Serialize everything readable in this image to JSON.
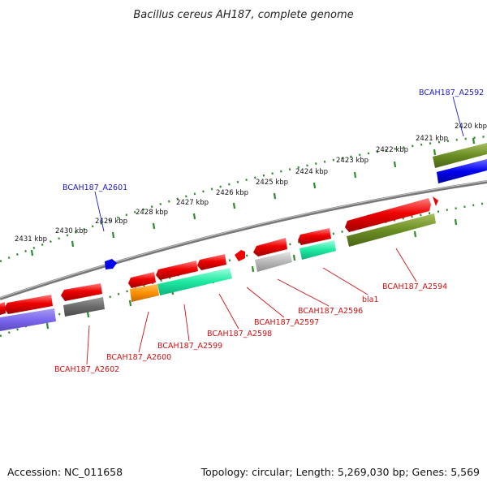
{
  "title": "Bacillus cereus AH187, complete genome",
  "footer": {
    "accession": "Accession: NC_011658",
    "summary": "Topology: circular; Length: 5,269,030 bp; Genes: 5,569"
  },
  "colors": {
    "backbone": "#7a7a7a",
    "tick": "#2e8b2e",
    "label_blue": "#1a1ac8",
    "label_red": "#cc1111"
  },
  "scale_labels": [
    "2420 kbp",
    "2421 kbp",
    "2422 kbp",
    "2423 kbp",
    "2424 kbp",
    "2425 kbp",
    "2426 kbp",
    "2427 kbp",
    "2428 kbp",
    "2429 kbp",
    "2430 kbp",
    "2431 kbp"
  ],
  "gene_labels": [
    {
      "id": "g2592",
      "text": "BCAH187_A2592",
      "color": "#1a1ac8"
    },
    {
      "id": "g2601",
      "text": "BCAH187_A2601",
      "color": "#1a1ac8"
    },
    {
      "id": "g2594",
      "text": "BCAH187_A2594",
      "color": "#cc1111"
    },
    {
      "id": "gbla1",
      "text": "bla1",
      "color": "#cc1111"
    },
    {
      "id": "g2596",
      "text": "BCAH187_A2596",
      "color": "#cc1111"
    },
    {
      "id": "g2597",
      "text": "BCAH187_A2597",
      "color": "#cc1111"
    },
    {
      "id": "g2598",
      "text": "BCAH187_A2598",
      "color": "#cc1111"
    },
    {
      "id": "g2599",
      "text": "BCAH187_A2599",
      "color": "#cc1111"
    },
    {
      "id": "g2600",
      "text": "BCAH187_A2600",
      "color": "#cc1111"
    },
    {
      "id": "g2602",
      "text": "BCAH187_A2602",
      "color": "#cc1111"
    }
  ]
}
